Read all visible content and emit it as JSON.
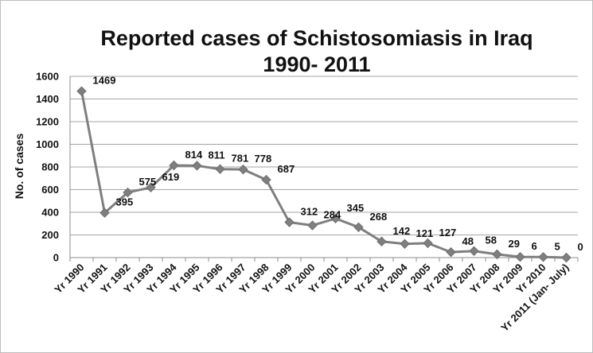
{
  "chart_data": {
    "type": "line",
    "title_lines": [
      "Reported cases of Schistosomiasis in Iraq",
      "1990- 2011"
    ],
    "xlabel": "",
    "ylabel": "No. of cases",
    "ylim": [
      0,
      1600
    ],
    "yticks": [
      "0",
      "200",
      "400",
      "600",
      "800",
      "1000",
      "1200",
      "1400",
      "1600"
    ],
    "grid": true,
    "legend": "none",
    "line_color": "#7f7f7f",
    "marker": "diamond",
    "categories": [
      "Yr 1990",
      "Yr 1991",
      "Yr 1992",
      "Yr 1993",
      "Yr 1994",
      "Yr 1995",
      "Yr 1996",
      "Yr 1997",
      "Yr 1998",
      "Yr 1999",
      "Yr 2000",
      "Yr 2001",
      "Yr 2002",
      "Yr 2003",
      "Yr 2004",
      "Yr 2005",
      "Yr 2006",
      "Yr 2007",
      "Yr 2008",
      "Yr 2009",
      "Yr 2010",
      "Yr 2011 (Jan- July)"
    ],
    "values": [
      1469,
      395,
      575,
      619,
      814,
      811,
      781,
      778,
      687,
      312,
      284,
      345,
      268,
      142,
      121,
      127,
      48,
      58,
      29,
      6,
      5,
      0
    ]
  }
}
